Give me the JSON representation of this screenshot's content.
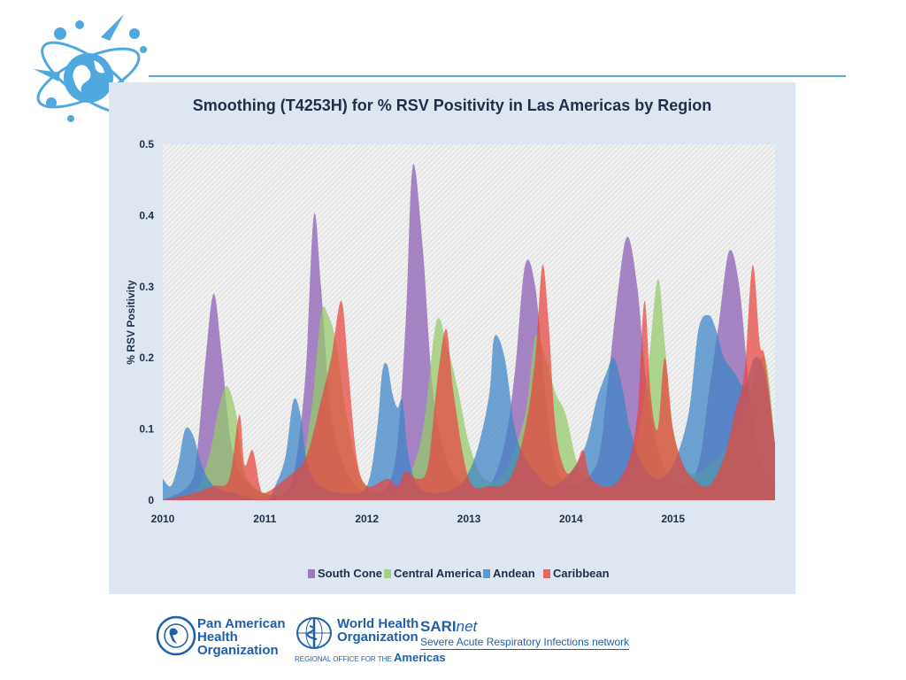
{
  "colors": {
    "south_cone": "#8a5bb3",
    "central_america": "#96c96a",
    "andean": "#3c84c6",
    "caribbean": "#e8453e",
    "panel_bg": "#dde6f1",
    "brand_blue": "#1f5fa8"
  },
  "footer": {
    "paho": [
      "Pan American",
      "Health",
      "Organization"
    ],
    "who": [
      "World Health",
      "Organization"
    ],
    "who_regional": "REGIONAL OFFICE FOR THE",
    "who_region": "Americas",
    "sari_bold": "SARI",
    "sari_italic": "net",
    "sari_sub": "Severe Acute Respiratory Infections network"
  },
  "chart_data": {
    "type": "area",
    "title": "Smoothing (T4253H) for % RSV Positivity in Las Americas by Region",
    "xlabel": "",
    "ylabel": "% RSV Positivity",
    "xlim": [
      2010,
      2016
    ],
    "ylim": [
      0,
      0.5
    ],
    "x_ticks": [
      "2010",
      "2011",
      "2012",
      "2013",
      "2014",
      "2015"
    ],
    "y_ticks": [
      "0",
      "0.1",
      "0.2",
      "0.3",
      "0.4",
      "0.5"
    ],
    "grid": false,
    "legend_position": "bottom",
    "series": [
      {
        "name": "South Cone",
        "color_key": "south_cone",
        "x": [
          2010.0,
          2010.25,
          2010.33,
          2010.42,
          2010.5,
          2010.58,
          2010.67,
          2010.8,
          2011.0,
          2011.2,
          2011.3,
          2011.4,
          2011.48,
          2011.55,
          2011.65,
          2011.8,
          2012.0,
          2012.2,
          2012.3,
          2012.38,
          2012.45,
          2012.55,
          2012.65,
          2012.8,
          2013.0,
          2013.2,
          2013.35,
          2013.45,
          2013.55,
          2013.65,
          2013.75,
          2013.85,
          2014.0,
          2014.25,
          2014.35,
          2014.45,
          2014.55,
          2014.65,
          2014.75,
          2014.9,
          2015.1,
          2015.25,
          2015.35,
          2015.45,
          2015.55,
          2015.65,
          2015.75,
          2015.85,
          2016.0
        ],
        "values": [
          0.0,
          0.02,
          0.06,
          0.2,
          0.29,
          0.2,
          0.08,
          0.03,
          0.01,
          0.01,
          0.05,
          0.18,
          0.4,
          0.3,
          0.12,
          0.04,
          0.01,
          0.02,
          0.08,
          0.25,
          0.47,
          0.35,
          0.15,
          0.05,
          0.02,
          0.02,
          0.08,
          0.18,
          0.33,
          0.3,
          0.15,
          0.05,
          0.02,
          0.05,
          0.15,
          0.28,
          0.37,
          0.3,
          0.15,
          0.05,
          0.02,
          0.05,
          0.15,
          0.25,
          0.35,
          0.3,
          0.15,
          0.05,
          0.02
        ]
      },
      {
        "name": "Central America",
        "color_key": "central_america",
        "x": [
          2010.0,
          2010.3,
          2010.45,
          2010.55,
          2010.63,
          2010.72,
          2010.8,
          2011.0,
          2011.3,
          2011.45,
          2011.55,
          2011.62,
          2011.7,
          2011.8,
          2011.95,
          2012.2,
          2012.4,
          2012.55,
          2012.68,
          2012.78,
          2012.9,
          2013.0,
          2013.15,
          2013.35,
          2013.55,
          2013.65,
          2013.75,
          2013.85,
          2013.95,
          2014.1,
          2014.4,
          2014.6,
          2014.75,
          2014.85,
          2014.92,
          2015.0,
          2015.15,
          2015.35,
          2015.55,
          2015.75,
          2015.9,
          2016.0
        ],
        "values": [
          0.0,
          0.01,
          0.06,
          0.13,
          0.16,
          0.12,
          0.04,
          0.01,
          0.02,
          0.12,
          0.26,
          0.26,
          0.22,
          0.12,
          0.03,
          0.01,
          0.03,
          0.1,
          0.25,
          0.22,
          0.15,
          0.08,
          0.03,
          0.04,
          0.12,
          0.23,
          0.2,
          0.15,
          0.12,
          0.04,
          0.02,
          0.05,
          0.18,
          0.31,
          0.22,
          0.1,
          0.04,
          0.05,
          0.08,
          0.15,
          0.2,
          0.08
        ]
      },
      {
        "name": "Andean",
        "color_key": "andean",
        "x": [
          2010.0,
          2010.08,
          2010.15,
          2010.22,
          2010.3,
          2010.38,
          2010.5,
          2010.7,
          2011.0,
          2011.1,
          2011.2,
          2011.28,
          2011.35,
          2011.42,
          2011.55,
          2011.8,
          2012.0,
          2012.1,
          2012.15,
          2012.2,
          2012.25,
          2012.3,
          2012.35,
          2012.4,
          2012.5,
          2012.7,
          2012.9,
          2013.0,
          2013.1,
          2013.2,
          2013.25,
          2013.35,
          2013.45,
          2013.55,
          2013.65,
          2013.8,
          2014.0,
          2014.15,
          2014.25,
          2014.35,
          2014.42,
          2014.5,
          2014.58,
          2014.7,
          2014.85,
          2015.0,
          2015.15,
          2015.25,
          2015.35,
          2015.42,
          2015.5,
          2015.6,
          2015.7,
          2015.8,
          2015.9,
          2016.0
        ],
        "values": [
          0.03,
          0.02,
          0.05,
          0.1,
          0.09,
          0.05,
          0.02,
          0.01,
          0.0,
          0.02,
          0.06,
          0.14,
          0.12,
          0.05,
          0.02,
          0.01,
          0.02,
          0.1,
          0.18,
          0.19,
          0.15,
          0.13,
          0.14,
          0.07,
          0.02,
          0.01,
          0.02,
          0.04,
          0.08,
          0.15,
          0.23,
          0.2,
          0.1,
          0.06,
          0.04,
          0.02,
          0.04,
          0.08,
          0.14,
          0.18,
          0.2,
          0.16,
          0.1,
          0.05,
          0.03,
          0.05,
          0.12,
          0.24,
          0.26,
          0.24,
          0.2,
          0.18,
          0.16,
          0.2,
          0.18,
          0.08
        ]
      },
      {
        "name": "Caribbean",
        "color_key": "caribbean",
        "x": [
          2010.0,
          2010.3,
          2010.5,
          2010.65,
          2010.75,
          2010.8,
          2010.88,
          2010.95,
          2011.0,
          2011.2,
          2011.4,
          2011.55,
          2011.65,
          2011.75,
          2011.82,
          2011.9,
          2012.0,
          2012.2,
          2012.3,
          2012.38,
          2012.5,
          2012.6,
          2012.7,
          2012.78,
          2012.85,
          2013.0,
          2013.2,
          2013.4,
          2013.55,
          2013.65,
          2013.72,
          2013.78,
          2013.85,
          2013.95,
          2014.05,
          2014.12,
          2014.2,
          2014.4,
          2014.55,
          2014.65,
          2014.72,
          2014.78,
          2014.85,
          2014.92,
          2015.0,
          2015.1,
          2015.2,
          2015.35,
          2015.5,
          2015.6,
          2015.7,
          2015.78,
          2015.85,
          2015.9,
          2016.0
        ],
        "values": [
          0.0,
          0.01,
          0.02,
          0.03,
          0.12,
          0.05,
          0.07,
          0.02,
          0.01,
          0.03,
          0.06,
          0.14,
          0.2,
          0.28,
          0.18,
          0.06,
          0.02,
          0.03,
          0.02,
          0.04,
          0.03,
          0.05,
          0.18,
          0.24,
          0.15,
          0.03,
          0.02,
          0.03,
          0.1,
          0.2,
          0.33,
          0.25,
          0.1,
          0.04,
          0.05,
          0.07,
          0.03,
          0.02,
          0.05,
          0.12,
          0.28,
          0.15,
          0.1,
          0.2,
          0.1,
          0.05,
          0.03,
          0.02,
          0.06,
          0.12,
          0.18,
          0.33,
          0.22,
          0.2,
          0.08
        ]
      }
    ]
  }
}
